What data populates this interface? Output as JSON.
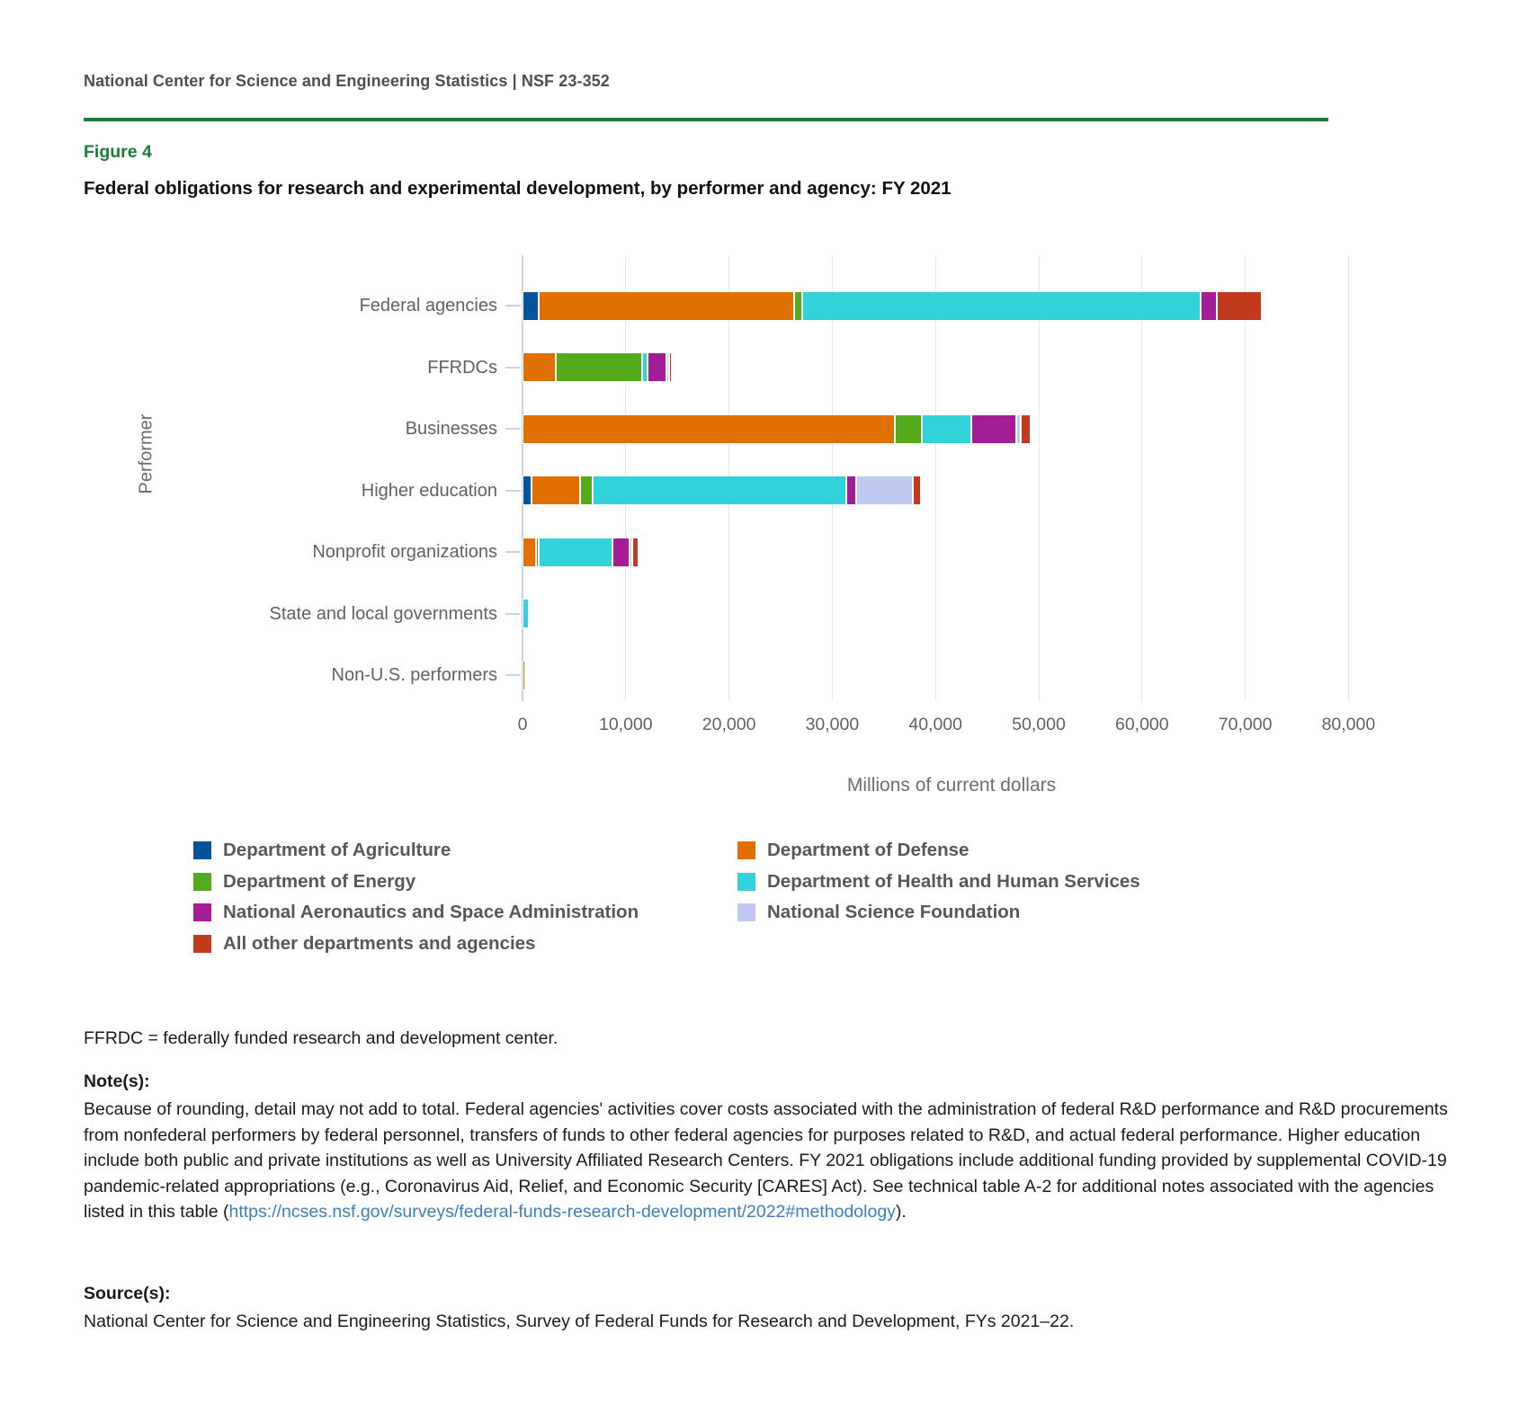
{
  "header": {
    "text": "National Center for Science and Engineering Statistics  |  NSF 23-352"
  },
  "figure": {
    "label": "Figure 4",
    "title": "Federal obligations for research and experimental development, by performer and agency: FY 2021"
  },
  "chart_data": {
    "type": "bar",
    "orientation": "horizontal",
    "stacked": true,
    "title": "Federal obligations for research and experimental development, by performer and agency: FY 2021",
    "xlabel": "Millions of current dollars",
    "ylabel": "Performer",
    "xlim": [
      0,
      83000
    ],
    "grid": true,
    "x_ticks": [
      {
        "value": 0,
        "label": "0"
      },
      {
        "value": 10000,
        "label": "10,000"
      },
      {
        "value": 20000,
        "label": "20,000"
      },
      {
        "value": 30000,
        "label": "30,000"
      },
      {
        "value": 40000,
        "label": "40,000"
      },
      {
        "value": 50000,
        "label": "50,000"
      },
      {
        "value": 60000,
        "label": "60,000"
      },
      {
        "value": 70000,
        "label": "70,000"
      },
      {
        "value": 80000,
        "label": "80,000"
      }
    ],
    "categories": [
      "Federal agencies",
      "FFRDCs",
      "Businesses",
      "Higher education",
      "Nonprofit organizations",
      "State and local governments",
      "Non-U.S. performers"
    ],
    "series": [
      {
        "name": "Department of Agriculture",
        "color": "#03549b",
        "values": [
          1570,
          0,
          0,
          900,
          0,
          0,
          0
        ]
      },
      {
        "name": "Department of Defense",
        "color": "#e07101",
        "values": [
          24750,
          3250,
          36100,
          4700,
          1350,
          0,
          250
        ]
      },
      {
        "name": "Department of Energy",
        "color": "#55aa1e",
        "values": [
          750,
          8350,
          2550,
          1200,
          150,
          0,
          0
        ]
      },
      {
        "name": "Department of Health and Human Services",
        "color": "#32d2db",
        "values": [
          38600,
          550,
          4850,
          24550,
          7100,
          600,
          0
        ]
      },
      {
        "name": "National Aeronautics and Space Administration",
        "color": "#a21d96",
        "values": [
          1600,
          1750,
          4350,
          950,
          1650,
          0,
          0
        ]
      },
      {
        "name": "National Science Foundation",
        "color": "#c0c9f1",
        "values": [
          0,
          300,
          400,
          5500,
          250,
          0,
          0
        ]
      },
      {
        "name": "All other departments and agencies",
        "color": "#c23a1d",
        "values": [
          4360,
          300,
          950,
          750,
          600,
          0,
          0
        ]
      }
    ],
    "legend_position": "bottom",
    "legend_columns": {
      "left": [
        0,
        2,
        4,
        6
      ],
      "right": [
        1,
        3,
        5
      ]
    }
  },
  "abbrev_note": "FFRDC = federally funded research and development center.",
  "notes": {
    "label": "Note(s):",
    "body": "Because of rounding, detail may not add to total. Federal agencies' activities cover costs associated with the administration of federal R&D performance and R&D procurements from nonfederal performers by federal personnel, transfers of funds to other federal agencies for purposes related to R&D, and actual federal performance. Higher education include both public and private institutions as well as University Affiliated Research Centers. FY 2021 obligations include additional funding provided by supplemental COVID-19 pandemic-related appropriations (e.g., Coronavirus Aid, Relief, and Economic Security [CARES] Act). See technical table A-2 for additional notes associated with the agencies listed in this table (",
    "link": "https://ncses.nsf.gov/surveys/federal-funds-research-development/2022#methodology",
    "after_link": ")."
  },
  "source": {
    "label": "Source(s):",
    "body": "National Center for Science and Engineering Statistics, Survey of Federal Funds for Research and Development, FYs 2021–22."
  }
}
